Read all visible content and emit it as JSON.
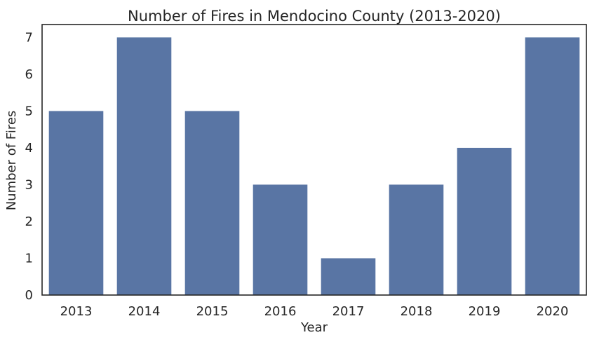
{
  "chart_data": {
    "type": "bar",
    "title": "Number of Fires in Mendocino County (2013-2020)",
    "xlabel": "Year",
    "ylabel": "Number of Fires",
    "categories": [
      "2013",
      "2014",
      "2015",
      "2016",
      "2017",
      "2018",
      "2019",
      "2020"
    ],
    "values": [
      5,
      7,
      5,
      3,
      1,
      3,
      4,
      7
    ],
    "ylim": [
      0,
      7.35
    ],
    "yticks": [
      0,
      1,
      2,
      3,
      4,
      5,
      6,
      7
    ],
    "grid": false,
    "bar_color": "#5975a4"
  }
}
